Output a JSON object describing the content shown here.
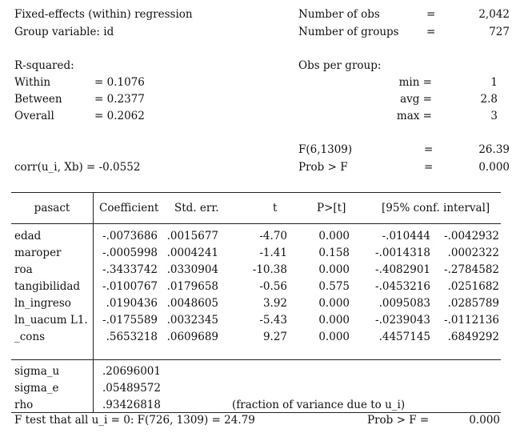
{
  "header": {
    "title": "Fixed-effects (within) regression",
    "group_variable": "Group variable: id",
    "num_obs_label": "Number of obs",
    "num_obs_value": "2,042",
    "num_groups_label": "Number of groups",
    "num_groups_value": "727",
    "eq": "="
  },
  "rsquared": {
    "label": "R-squared:",
    "within_label": "Within",
    "within_value": "= 0.1076",
    "between_label": "Between",
    "between_value": "= 0.2377",
    "overall_label": "Overall",
    "overall_value": "= 0.2062"
  },
  "obs_per_group": {
    "label": "Obs per group:",
    "min_label": "min =",
    "min_value": "1",
    "avg_label": "avg =",
    "avg_value": "2.8",
    "max_label": "max =",
    "max_value": "3"
  },
  "fstat": {
    "f_label": "F(6,1309)",
    "f_value": "26.39",
    "prob_label": "Prob > F",
    "prob_value": "0.000",
    "corr": "corr(u_i, Xb) = -0.0552"
  },
  "table": {
    "headers": {
      "var": "pasact",
      "coef": "Coefficient",
      "se": "Std. err.",
      "t": "t",
      "p": "P>[t]",
      "ci": "[95% conf. interval]"
    },
    "rows": [
      {
        "var": "edad",
        "coef": "-.0073686",
        "se": ".0015677",
        "t": "-4.70",
        "p": "0.000",
        "lo": "-.010444",
        "hi": "-.0042932"
      },
      {
        "var": "maroper",
        "coef": "-.0005998",
        "se": ".0004241",
        "t": "-1.41",
        "p": "0.158",
        "lo": "-.0014318",
        "hi": ".0002322"
      },
      {
        "var": "roa",
        "coef": "-.3433742",
        "se": ".0330904",
        "t": "-10.38",
        "p": "0.000",
        "lo": "-.4082901",
        "hi": "-.2784582"
      },
      {
        "var": "tangibilidad",
        "coef": "-.0100767",
        "se": ".0179658",
        "t": "-0.56",
        "p": "0.575",
        "lo": "-.0453216",
        "hi": ".0251682"
      },
      {
        "var": "ln_ingreso",
        "coef": ".0190436",
        "se": ".0048605",
        "t": "3.92",
        "p": "0.000",
        "lo": ".0095083",
        "hi": ".0285789"
      },
      {
        "var": "ln_uacum L1.",
        "coef": "-.0175589",
        "se": ".0032345",
        "t": "-5.43",
        "p": "0.000",
        "lo": "-.0239043",
        "hi": "-.0112136"
      },
      {
        "var": "_cons",
        "coef": ".5653218",
        "se": ".0609689",
        "t": "9.27",
        "p": "0.000",
        "lo": ".4457145",
        "hi": ".6849292"
      }
    ],
    "sigma": [
      {
        "var": "sigma_u",
        "value": ".20696001",
        "note": ""
      },
      {
        "var": "sigma_e",
        "value": ".05489572",
        "note": ""
      },
      {
        "var": "rho",
        "value": ".93426818",
        "note": "(fraction of variance due to u_i)"
      }
    ]
  },
  "footer": {
    "ftest": "F test that all u_i = 0:  F(726,  1309)   = 24.79",
    "prob_label": "Prob > F    =",
    "prob_value": "0.000"
  }
}
